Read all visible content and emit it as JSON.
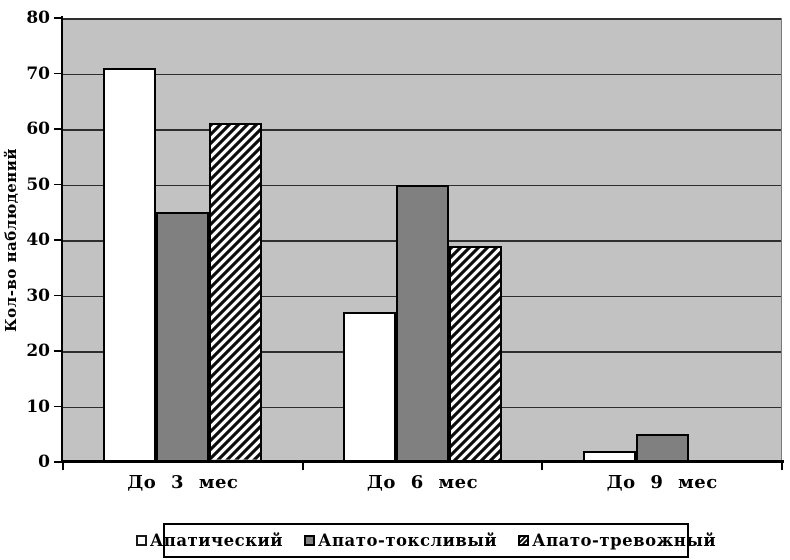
{
  "chart_data": {
    "type": "bar",
    "title": "",
    "xlabel": "",
    "ylabel": "Кол-во наблюдений",
    "categories": [
      "До 3 мес",
      "До 6 мес",
      "До 9 мес"
    ],
    "series": [
      {
        "name": "Апатический",
        "style": "white",
        "values": [
          71,
          27,
          2
        ]
      },
      {
        "name": "Апато-токсливый",
        "style": "gray",
        "values": [
          45,
          50,
          5
        ]
      },
      {
        "name": "Апато-тревожный",
        "style": "hatch",
        "values": [
          61,
          39,
          0
        ]
      }
    ],
    "ylim": [
      0,
      80
    ],
    "ytick_step": 10,
    "grid": true,
    "legend_position": "bottom"
  },
  "colors": {
    "page_background": "#ffffff",
    "plot_background": "#c2c2c2",
    "bar_white": "#ffffff",
    "bar_gray": "#808080",
    "hatch_foreground": "#0d0d0d",
    "hatch_background": "#ffffff",
    "gridline": "#2e2e2e",
    "axis": "#000000"
  }
}
